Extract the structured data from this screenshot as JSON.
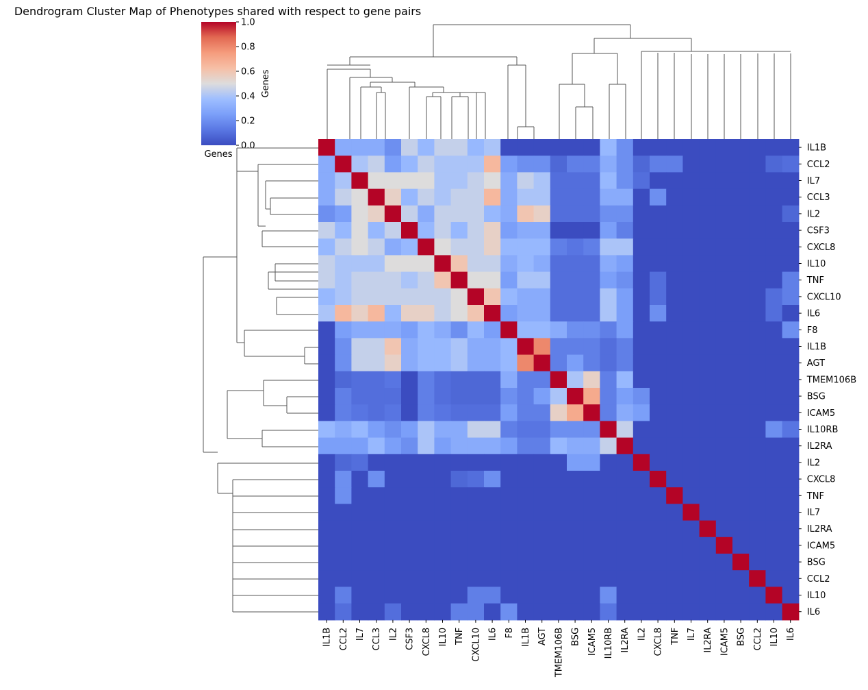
{
  "chart_data": {
    "type": "heatmap",
    "title": "Dendrogram Cluster Map of Phenotypes shared with respect to gene pairs",
    "colorbar": {
      "label": "Genes",
      "below_label": "Genes",
      "range": [
        0.0,
        1.0
      ],
      "ticks": [
        "0.0",
        "0.2",
        "0.4",
        "0.6",
        "0.8",
        "1.0"
      ],
      "tick_values": [
        0,
        0.2,
        0.4,
        0.6,
        0.8,
        1.0
      ],
      "colormap": "coolwarm"
    },
    "col_labels": [
      "IL1B",
      "CCL2",
      "IL7",
      "CCL3",
      "IL2",
      "CSF3",
      "CXCL8",
      "IL10",
      "TNF",
      "CXCL10",
      "IL6",
      "F8",
      "IL1B",
      "AGT",
      "TMEM106B",
      "BSG",
      "ICAM5",
      "IL10RB",
      "IL2RA",
      "IL2",
      "CXCL8",
      "TNF",
      "IL7",
      "IL2RA",
      "ICAM5",
      "BSG",
      "CCL2",
      "IL10",
      "IL6"
    ],
    "row_labels": [
      "IL1B",
      "CCL2",
      "IL7",
      "CCL3",
      "IL2",
      "CSF3",
      "CXCL8",
      "IL10",
      "TNF",
      "CXCL10",
      "IL6",
      "F8",
      "IL1B",
      "AGT",
      "TMEM106B",
      "BSG",
      "ICAM5",
      "IL10RB",
      "IL2RA",
      "IL2",
      "CXCL8",
      "TNF",
      "IL7",
      "IL2RA",
      "ICAM5",
      "BSG",
      "CCL2",
      "IL10",
      "IL6"
    ],
    "values": [
      [
        1.0,
        0.3,
        0.3,
        0.3,
        0.2,
        0.45,
        0.35,
        0.45,
        0.45,
        0.35,
        0.4,
        0,
        0,
        0,
        0,
        0,
        0,
        0.35,
        0.2,
        0,
        0,
        0,
        0,
        0,
        0,
        0,
        0,
        0,
        0
      ],
      [
        0.3,
        1.0,
        0.4,
        0.45,
        0.25,
        0.35,
        0.45,
        0.4,
        0.4,
        0.4,
        0.65,
        0.25,
        0.2,
        0.2,
        0.08,
        0.15,
        0.15,
        0.3,
        0.2,
        0.08,
        0.15,
        0.15,
        0,
        0,
        0,
        0,
        0,
        0.08,
        0.1
      ],
      [
        0.3,
        0.4,
        1.0,
        0.5,
        0.5,
        0.5,
        0.5,
        0.4,
        0.4,
        0.45,
        0.5,
        0.3,
        0.45,
        0.4,
        0.1,
        0.1,
        0.1,
        0.35,
        0.2,
        0.1,
        0,
        0,
        0,
        0,
        0,
        0,
        0,
        0,
        0
      ],
      [
        0.3,
        0.45,
        0.5,
        1.0,
        0.55,
        0.35,
        0.45,
        0.4,
        0.45,
        0.45,
        0.65,
        0.3,
        0.4,
        0.4,
        0.1,
        0.1,
        0.1,
        0.3,
        0.3,
        0,
        0.2,
        0,
        0,
        0,
        0,
        0,
        0,
        0,
        0
      ],
      [
        0.2,
        0.25,
        0.5,
        0.55,
        1.0,
        0.45,
        0.3,
        0.45,
        0.45,
        0.45,
        0.35,
        0.3,
        0.6,
        0.55,
        0.1,
        0.1,
        0.1,
        0.2,
        0.2,
        0,
        0,
        0,
        0,
        0,
        0,
        0,
        0,
        0,
        0.08
      ],
      [
        0.45,
        0.35,
        0.5,
        0.35,
        0.45,
        1.0,
        0.35,
        0.45,
        0.35,
        0.45,
        0.55,
        0.25,
        0.3,
        0.3,
        0,
        0,
        0,
        0.25,
        0.15,
        0,
        0,
        0,
        0,
        0,
        0,
        0,
        0,
        0,
        0
      ],
      [
        0.35,
        0.45,
        0.5,
        0.45,
        0.3,
        0.35,
        1.0,
        0.5,
        0.45,
        0.45,
        0.55,
        0.35,
        0.35,
        0.35,
        0.15,
        0.12,
        0.15,
        0.4,
        0.4,
        0,
        0,
        0,
        0,
        0,
        0,
        0,
        0,
        0,
        0
      ],
      [
        0.45,
        0.4,
        0.4,
        0.4,
        0.5,
        0.5,
        0.5,
        1.0,
        0.6,
        0.45,
        0.45,
        0.3,
        0.35,
        0.3,
        0.1,
        0.1,
        0.1,
        0.3,
        0.25,
        0,
        0,
        0,
        0,
        0,
        0,
        0,
        0,
        0,
        0
      ],
      [
        0.45,
        0.4,
        0.45,
        0.45,
        0.45,
        0.4,
        0.45,
        0.6,
        1.0,
        0.5,
        0.5,
        0.25,
        0.4,
        0.4,
        0.1,
        0.1,
        0.1,
        0.25,
        0.2,
        0,
        0.1,
        0,
        0,
        0,
        0,
        0,
        0,
        0,
        0.15
      ],
      [
        0.35,
        0.4,
        0.45,
        0.45,
        0.45,
        0.45,
        0.45,
        0.45,
        0.5,
        1.0,
        0.6,
        0.35,
        0.3,
        0.3,
        0.1,
        0.1,
        0.1,
        0.4,
        0.25,
        0,
        0.1,
        0,
        0,
        0,
        0,
        0,
        0,
        0.1,
        0.15
      ],
      [
        0.4,
        0.65,
        0.55,
        0.65,
        0.35,
        0.55,
        0.55,
        0.45,
        0.5,
        0.6,
        1.0,
        0.25,
        0.3,
        0.3,
        0.1,
        0.1,
        0.1,
        0.4,
        0.25,
        0,
        0.2,
        0,
        0,
        0,
        0,
        0,
        0,
        0.1,
        0
      ],
      [
        0,
        0.25,
        0.3,
        0.3,
        0.3,
        0.25,
        0.35,
        0.3,
        0.2,
        0.35,
        0.25,
        1.0,
        0.35,
        0.35,
        0.3,
        0.2,
        0.2,
        0.15,
        0.25,
        0,
        0,
        0,
        0,
        0,
        0,
        0,
        0,
        0,
        0.2
      ],
      [
        0,
        0.2,
        0.45,
        0.45,
        0.6,
        0.3,
        0.35,
        0.35,
        0.4,
        0.3,
        0.3,
        0.35,
        1.0,
        0.8,
        0.15,
        0.15,
        0.15,
        0.1,
        0.15,
        0,
        0,
        0,
        0,
        0,
        0,
        0,
        0,
        0,
        0
      ],
      [
        0,
        0.2,
        0.45,
        0.45,
        0.55,
        0.3,
        0.35,
        0.35,
        0.4,
        0.3,
        0.3,
        0.35,
        0.8,
        1.0,
        0.15,
        0.25,
        0.15,
        0.1,
        0.15,
        0,
        0,
        0,
        0,
        0,
        0,
        0,
        0,
        0,
        0
      ],
      [
        0,
        0.08,
        0.1,
        0.1,
        0.12,
        0,
        0.15,
        0.1,
        0.08,
        0.08,
        0.08,
        0.3,
        0.15,
        0.15,
        1.0,
        0.4,
        0.55,
        0.15,
        0.35,
        0,
        0,
        0,
        0,
        0,
        0,
        0,
        0,
        0,
        0
      ],
      [
        0,
        0.15,
        0.1,
        0.1,
        0.1,
        0,
        0.15,
        0.1,
        0.08,
        0.08,
        0.08,
        0.2,
        0.15,
        0.25,
        0.4,
        1.0,
        0.7,
        0.15,
        0.25,
        0.2,
        0,
        0,
        0,
        0,
        0,
        0,
        0,
        0,
        0
      ],
      [
        0,
        0.15,
        0.12,
        0.1,
        0.12,
        0,
        0.15,
        0.12,
        0.1,
        0.1,
        0.1,
        0.25,
        0.15,
        0.15,
        0.55,
        0.7,
        1.0,
        0.15,
        0.3,
        0.25,
        0,
        0,
        0,
        0,
        0,
        0,
        0,
        0,
        0
      ],
      [
        0.35,
        0.3,
        0.35,
        0.25,
        0.2,
        0.25,
        0.4,
        0.3,
        0.3,
        0.45,
        0.45,
        0.15,
        0.12,
        0.12,
        0.2,
        0.2,
        0.2,
        1.0,
        0.45,
        0,
        0,
        0,
        0,
        0,
        0,
        0,
        0,
        0.2,
        0.12
      ],
      [
        0.25,
        0.25,
        0.25,
        0.35,
        0.25,
        0.2,
        0.4,
        0.25,
        0.3,
        0.3,
        0.3,
        0.25,
        0.15,
        0.15,
        0.35,
        0.3,
        0.3,
        0.45,
        1.0,
        0,
        0,
        0,
        0,
        0,
        0,
        0,
        0,
        0,
        0
      ],
      [
        0,
        0.08,
        0.1,
        0,
        0,
        0,
        0,
        0,
        0,
        0,
        0,
        0,
        0,
        0,
        0,
        0.25,
        0.25,
        0,
        0,
        1.0,
        0,
        0,
        0,
        0,
        0,
        0,
        0,
        0,
        0
      ],
      [
        0,
        0.2,
        0,
        0.2,
        0,
        0,
        0,
        0,
        0.08,
        0.1,
        0.2,
        0,
        0,
        0,
        0,
        0,
        0,
        0,
        0,
        0,
        1.0,
        0,
        0,
        0,
        0,
        0,
        0,
        0,
        0
      ],
      [
        0,
        0.2,
        0,
        0,
        0,
        0,
        0,
        0,
        0,
        0,
        0,
        0,
        0,
        0,
        0,
        0,
        0,
        0,
        0,
        0,
        0,
        1.0,
        0,
        0,
        0,
        0,
        0,
        0,
        0
      ],
      [
        0,
        0,
        0,
        0,
        0,
        0,
        0,
        0,
        0,
        0,
        0,
        0,
        0,
        0,
        0,
        0,
        0,
        0,
        0,
        0,
        0,
        0,
        1.0,
        0,
        0,
        0,
        0,
        0,
        0
      ],
      [
        0,
        0,
        0,
        0,
        0,
        0,
        0,
        0,
        0,
        0,
        0,
        0,
        0,
        0,
        0,
        0,
        0,
        0,
        0,
        0,
        0,
        0,
        0,
        1.0,
        0,
        0,
        0,
        0,
        0
      ],
      [
        0,
        0,
        0,
        0,
        0,
        0,
        0,
        0,
        0,
        0,
        0,
        0,
        0,
        0,
        0,
        0,
        0,
        0,
        0,
        0,
        0,
        0,
        0,
        0,
        1.0,
        0,
        0,
        0,
        0
      ],
      [
        0,
        0,
        0,
        0,
        0,
        0,
        0,
        0,
        0,
        0,
        0,
        0,
        0,
        0,
        0,
        0,
        0,
        0,
        0,
        0,
        0,
        0,
        0,
        0,
        0,
        1.0,
        0,
        0,
        0
      ],
      [
        0,
        0,
        0,
        0,
        0,
        0,
        0,
        0,
        0,
        0,
        0,
        0,
        0,
        0,
        0,
        0,
        0,
        0,
        0,
        0,
        0,
        0,
        0,
        0,
        0,
        0,
        1.0,
        0,
        0
      ],
      [
        0,
        0.15,
        0,
        0,
        0,
        0,
        0,
        0,
        0,
        0.15,
        0.15,
        0,
        0,
        0,
        0,
        0,
        0,
        0.2,
        0,
        0,
        0,
        0,
        0,
        0,
        0,
        0,
        0,
        1.0,
        0
      ],
      [
        0,
        0.1,
        0,
        0,
        0.1,
        0,
        0,
        0,
        0.15,
        0.15,
        0,
        0.2,
        0,
        0,
        0,
        0,
        0,
        0.12,
        0,
        0,
        0,
        0,
        0,
        0,
        0,
        0,
        0,
        0,
        1.0
      ]
    ],
    "xlabel": "",
    "ylabel": "",
    "grid": false
  }
}
